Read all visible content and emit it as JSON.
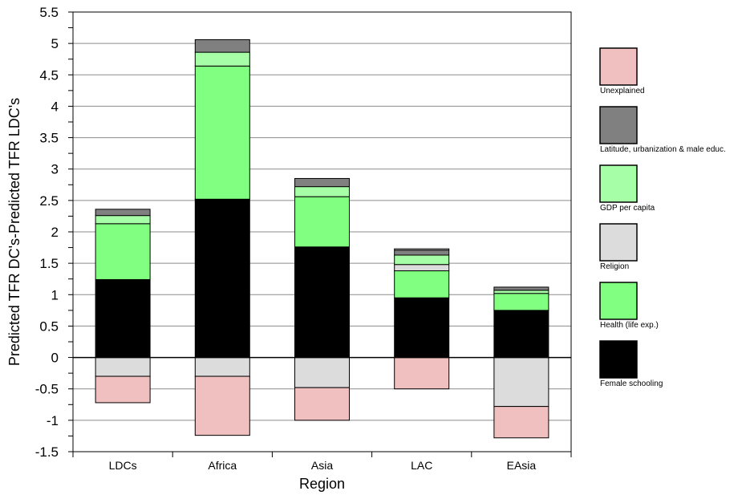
{
  "chart_data": {
    "type": "bar",
    "stacked": true,
    "xlabel": "Region",
    "ylabel": "Predicted TFR DC's-Predicted TFR LDC's",
    "ylim": [
      -1.5,
      5.5
    ],
    "yticks": [
      "5.5",
      "5",
      "4.5",
      "4",
      "3.5",
      "3",
      "2.5",
      "2",
      "1.5",
      "1",
      "0.5",
      "0",
      "-0.5",
      "-1",
      "-1.5"
    ],
    "grid": true,
    "legend_position": "right",
    "categories": [
      "LDCs",
      "Africa",
      "Asia",
      "LAC",
      "EAsia"
    ],
    "series": [
      {
        "name": "Female schooling",
        "color": "#000000",
        "values": [
          1.24,
          2.52,
          1.76,
          0.95,
          0.75
        ]
      },
      {
        "name": "Health (life exp.)",
        "color": "#80ff80",
        "values": [
          0.89,
          2.12,
          0.8,
          0.43,
          0.27
        ]
      },
      {
        "name": "Religion",
        "color": "#dcdcdc",
        "values": [
          -0.3,
          -0.3,
          -0.48,
          0.1,
          -0.78
        ]
      },
      {
        "name": "GDP per capita",
        "color": "#a6ffa6",
        "values": [
          0.13,
          0.22,
          0.16,
          0.15,
          0.05
        ]
      },
      {
        "name": "Latitude, urbanization & male educ.",
        "color": "#808080",
        "values": [
          0.1,
          0.2,
          0.13,
          0.08,
          0.05
        ]
      },
      {
        "name": "Unexplained",
        "color": "#f0c0c0",
        "values": [
          -0.42,
          -0.94,
          -0.52,
          -0.5,
          -0.5
        ]
      }
    ],
    "extra_segments": [
      {
        "category": "LAC",
        "color": "#ffffff",
        "value": 0.02
      }
    ]
  }
}
